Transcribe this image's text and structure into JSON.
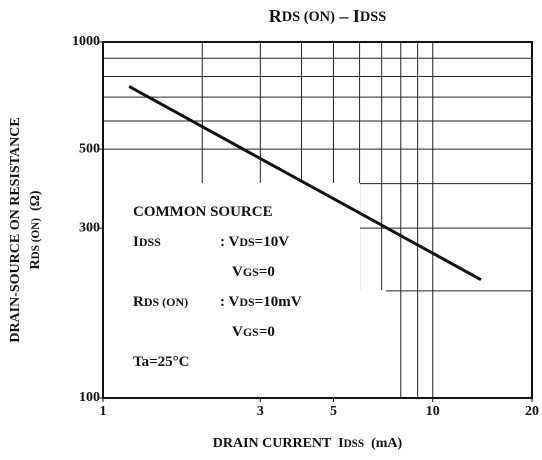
{
  "chart_data": {
    "type": "line",
    "title": [
      {
        "text": "R"
      },
      {
        "text": "DS (ON)",
        "sub": true
      },
      {
        "text": " – I"
      },
      {
        "text": "DSS",
        "sub": true
      }
    ],
    "y_label": [
      [
        {
          "text": "DRAIN-SOURCE ON RESISTANCE"
        }
      ],
      [
        {
          "text": "R"
        },
        {
          "text": "DS (ON)",
          "sub": true
        },
        {
          "text": "  (Ω)"
        }
      ]
    ],
    "x_label": [
      {
        "text": "DRAIN CURRENT  I"
      },
      {
        "text": "DSS",
        "sub": true
      },
      {
        "text": "  (mA)"
      }
    ],
    "log_x": true,
    "log_y": true,
    "xlim": [
      1,
      20
    ],
    "ylim": [
      100,
      1000
    ],
    "xticks": [
      1,
      3,
      5,
      10,
      20
    ],
    "yticks": [
      100,
      300,
      500,
      1000
    ],
    "xgrid": [
      2,
      3,
      4,
      5,
      6,
      7,
      8,
      9,
      10
    ],
    "ygrid": [
      200,
      300,
      400,
      500,
      600,
      700,
      800,
      900
    ],
    "x": [
      1.2,
      14
    ],
    "series": [
      {
        "color": "#111111",
        "values": [
          750,
          215
        ]
      }
    ],
    "annotations": [
      {
        "parts": [
          {
            "text": "COMMON SOURCE"
          }
        ]
      },
      {
        "parts": [
          {
            "text": "I"
          },
          {
            "text": "DSS",
            "sub": true
          }
        ]
      },
      {
        "parts": [
          {
            "text": ": V"
          },
          {
            "text": "DS",
            "sub": true
          },
          {
            "text": "=10V"
          }
        ]
      },
      {
        "parts": [
          {
            "text": "V"
          },
          {
            "text": "GS",
            "sub": true
          },
          {
            "text": "=0"
          }
        ]
      },
      {
        "parts": [
          {
            "text": "R"
          },
          {
            "text": "DS (ON)",
            "sub": true
          }
        ]
      },
      {
        "parts": [
          {
            "text": ": V"
          },
          {
            "text": "DS",
            "sub": true
          },
          {
            "text": "=10mV"
          }
        ]
      },
      {
        "parts": [
          {
            "text": "V"
          },
          {
            "text": "GS",
            "sub": true
          },
          {
            "text": "=0"
          }
        ]
      },
      {
        "parts": [
          {
            "text": "Ta=25°C"
          }
        ]
      }
    ]
  }
}
